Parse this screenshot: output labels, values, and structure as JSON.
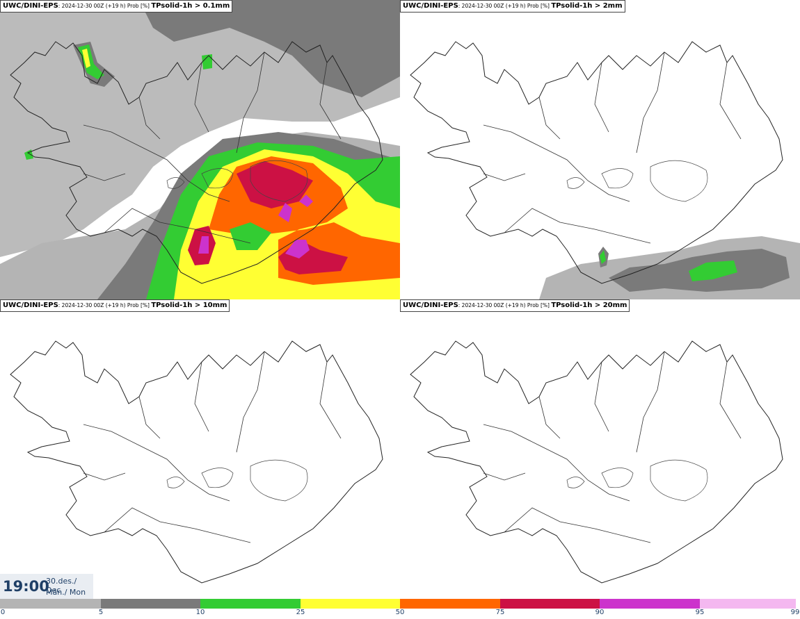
{
  "panels": [
    {
      "model": "UWC/DINI-EPS",
      "meta": ": 2024-12-30 00Z (+19 h) Prob [%] ",
      "variable": "TPsolid-1h > 0.1mm"
    },
    {
      "model": "UWC/DINI-EPS",
      "meta": ": 2024-12-30 00Z (+19 h) Prob [%] ",
      "variable": "TPsolid-1h > 2mm"
    },
    {
      "model": "UWC/DINI-EPS",
      "meta": ": 2024-12-30 00Z (+19 h) Prob [%] ",
      "variable": "TPsolid-1h > 10mm"
    },
    {
      "model": "UWC/DINI-EPS",
      "meta": ": 2024-12-30 00Z (+19 h) Prob [%] ",
      "variable": "TPsolid-1h > 20mm"
    }
  ],
  "valid_time": {
    "time": "19:00",
    "date": "30.des./ Dec",
    "weekday": "Mán./ Mon"
  },
  "legend": {
    "ticks": [
      "0",
      "5",
      "10",
      "25",
      "50",
      "75",
      "90",
      "95",
      "99"
    ],
    "colors": [
      "#ffffff",
      "#b4b4b4",
      "#7a7a7a",
      "#33cc33",
      "#ffff33",
      "#ff6600",
      "#cc1144",
      "#cc33cc",
      "#f4b8f0"
    ]
  },
  "map_colors": {
    "coast": "#222222",
    "road": "#333333"
  }
}
